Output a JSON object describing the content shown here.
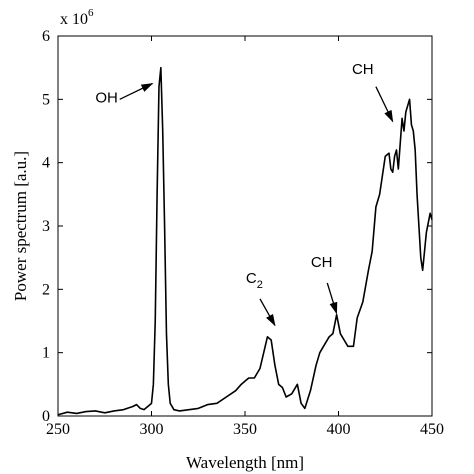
{
  "chart_data": {
    "type": "line",
    "xlabel": "Wavelength [nm]",
    "ylabel": "Power spectrum [a.u.]",
    "multiplier_label": "x 10",
    "multiplier_exponent": "6",
    "xlim": [
      250,
      450
    ],
    "ylim": [
      0,
      6
    ],
    "xticks": [
      250,
      300,
      350,
      400,
      450
    ],
    "yticks": [
      0,
      1,
      2,
      3,
      4,
      5,
      6
    ],
    "grid": false,
    "line_color": "#000000",
    "series": [
      {
        "x": [
          250,
          255,
          260,
          265,
          270,
          275,
          280,
          285,
          290,
          292,
          294,
          296,
          298,
          300,
          301,
          302,
          303,
          304,
          305,
          306,
          307,
          308,
          309,
          310,
          312,
          315,
          320,
          325,
          330,
          335,
          340,
          345,
          348,
          350,
          352,
          355,
          358,
          360,
          362,
          364,
          366,
          368,
          370,
          372,
          375,
          378,
          380,
          382,
          385,
          388,
          390,
          392,
          395,
          397,
          399,
          401,
          403,
          405,
          408,
          410,
          413,
          416,
          418,
          420,
          422,
          425,
          427,
          428,
          429,
          430,
          431,
          432,
          433,
          434,
          435,
          436,
          437,
          438,
          439,
          440,
          441,
          442,
          443,
          444,
          445,
          447,
          449,
          450
        ],
        "y": [
          0.02,
          0.06,
          0.04,
          0.07,
          0.08,
          0.05,
          0.08,
          0.1,
          0.15,
          0.18,
          0.12,
          0.1,
          0.15,
          0.2,
          0.5,
          1.5,
          3.5,
          5.2,
          5.5,
          4.5,
          3.0,
          1.3,
          0.5,
          0.2,
          0.1,
          0.08,
          0.1,
          0.12,
          0.18,
          0.2,
          0.3,
          0.4,
          0.5,
          0.55,
          0.6,
          0.6,
          0.75,
          1.0,
          1.25,
          1.2,
          0.8,
          0.5,
          0.45,
          0.3,
          0.35,
          0.5,
          0.2,
          0.12,
          0.4,
          0.8,
          1.0,
          1.1,
          1.25,
          1.3,
          1.6,
          1.3,
          1.2,
          1.1,
          1.1,
          1.55,
          1.8,
          2.3,
          2.6,
          3.3,
          3.5,
          4.1,
          4.15,
          3.9,
          3.85,
          4.1,
          4.2,
          3.9,
          4.3,
          4.7,
          4.5,
          4.8,
          4.9,
          5.0,
          4.6,
          4.5,
          4.2,
          3.5,
          3.0,
          2.5,
          2.3,
          2.9,
          3.2,
          3.1
        ]
      }
    ],
    "annotations": [
      {
        "text": "OH",
        "sub": "",
        "text_x": 276,
        "text_y": 4.95,
        "arrow_from": [
          283,
          5.0
        ],
        "arrow_to": [
          300.5,
          5.25
        ]
      },
      {
        "text": "CH",
        "sub": "",
        "text_x": 413,
        "text_y": 5.4,
        "arrow_from": [
          420,
          5.2
        ],
        "arrow_to": [
          429,
          4.65
        ]
      },
      {
        "text": "C",
        "sub": "2",
        "text_x": 355,
        "text_y": 2.1,
        "arrow_from": [
          358,
          1.85
        ],
        "arrow_to": [
          366,
          1.43
        ]
      },
      {
        "text": "CH",
        "sub": "",
        "text_x": 391,
        "text_y": 2.35,
        "arrow_from": [
          394,
          2.1
        ],
        "arrow_to": [
          399,
          1.62
        ]
      }
    ]
  }
}
